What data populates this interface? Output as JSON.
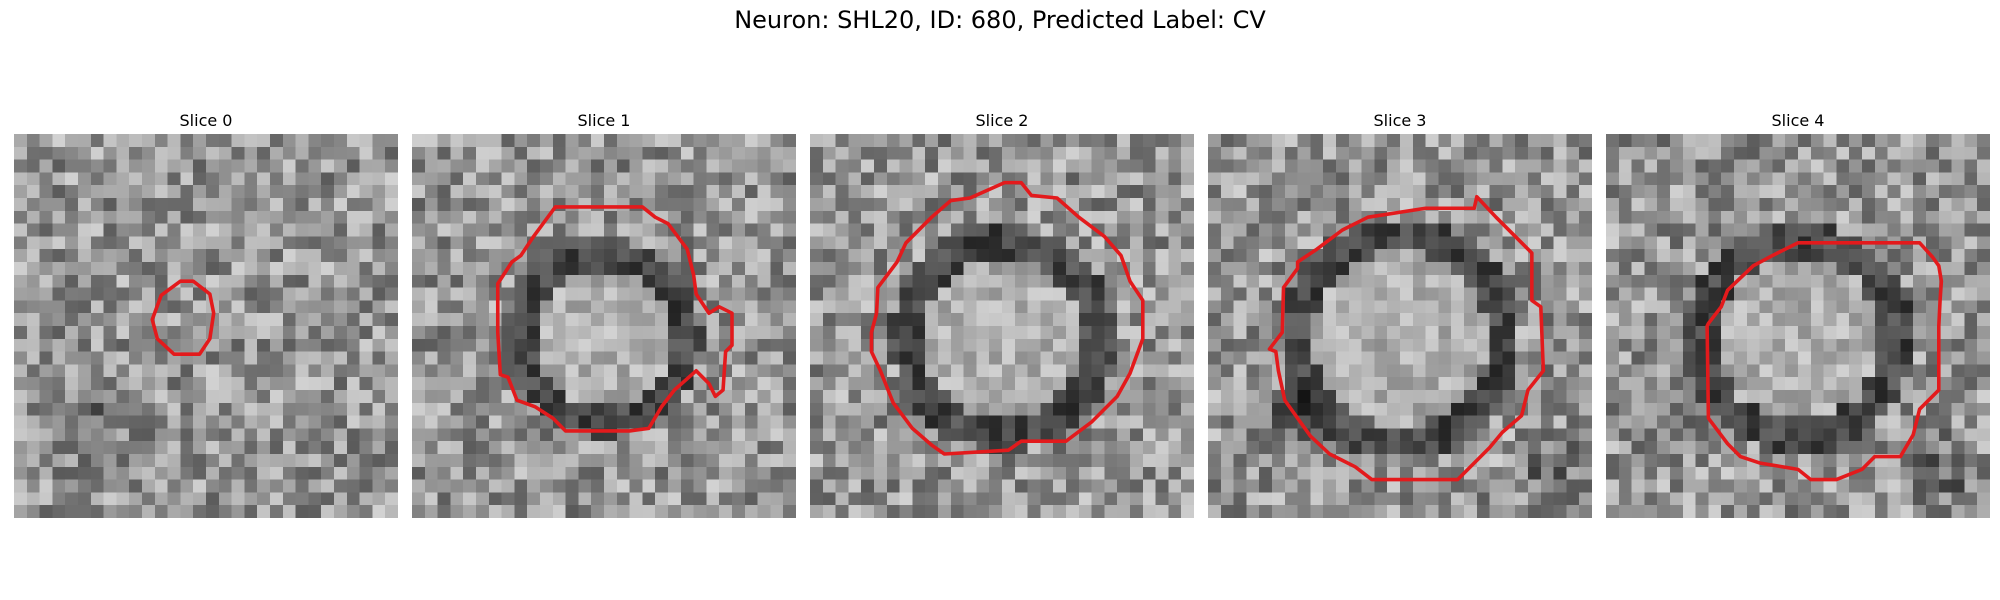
{
  "figure": {
    "title": "Neuron: SHL20, ID: 680, Predicted Label: CV"
  },
  "image_grid": {
    "rows": 30,
    "cols": 30
  },
  "colors": {
    "contour": "#e31a1c",
    "background": "#ffffff"
  },
  "panels": [
    {
      "title": "Slice 0",
      "pattern": "noise",
      "ring_radius": 0,
      "dark_blobs": true
    },
    {
      "title": "Slice 1",
      "pattern": "ring",
      "ring_radius": 0.6,
      "dark_blobs": false
    },
    {
      "title": "Slice 2",
      "pattern": "ring",
      "ring_radius": 0.7,
      "dark_blobs": false
    },
    {
      "title": "Slice 3",
      "pattern": "ring",
      "ring_radius": 0.75,
      "dark_blobs": true
    },
    {
      "title": "Slice 4",
      "pattern": "ring",
      "ring_radius": 0.72,
      "dark_blobs": true
    }
  ]
}
